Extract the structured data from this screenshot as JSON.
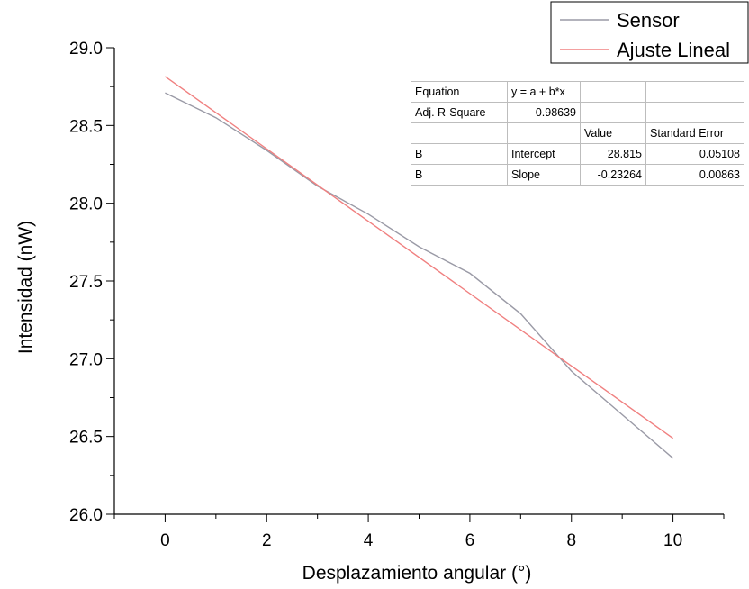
{
  "chart_data": {
    "type": "line",
    "title": "",
    "xlabel": "Desplazamiento angular (°)",
    "ylabel": "Intensidad (nW)",
    "xlim": [
      -1,
      11
    ],
    "ylim": [
      26.0,
      29.0
    ],
    "x_ticks": [
      "0",
      "2",
      "4",
      "6",
      "8",
      "10"
    ],
    "y_ticks": [
      "26.0",
      "26.5",
      "27.0",
      "27.5",
      "28.0",
      "28.5",
      "29.0"
    ],
    "grid": false,
    "legend_position": "top-right",
    "series": [
      {
        "name": "Sensor",
        "color": "#9a9aa6",
        "x": [
          0,
          1,
          2,
          3,
          4,
          5,
          6,
          7,
          8,
          9,
          10
        ],
        "y": [
          28.71,
          28.55,
          28.34,
          28.11,
          27.93,
          27.72,
          27.55,
          27.29,
          26.92,
          26.64,
          26.36
        ]
      },
      {
        "name": "Ajuste Lineal",
        "color": "#f08080",
        "x": [
          0,
          10
        ],
        "y": [
          28.815,
          26.488
        ]
      }
    ],
    "fit_table": {
      "rows": [
        [
          "Equation",
          "y = a + b*x",
          "",
          ""
        ],
        [
          "Adj. R-Square",
          "0.98639",
          "",
          ""
        ],
        [
          "",
          "",
          "Value",
          "Standard Error"
        ],
        [
          "B",
          "Intercept",
          "28.815",
          "0.05108"
        ],
        [
          "B",
          "Slope",
          "-0.23264",
          "0.00863"
        ]
      ]
    }
  }
}
